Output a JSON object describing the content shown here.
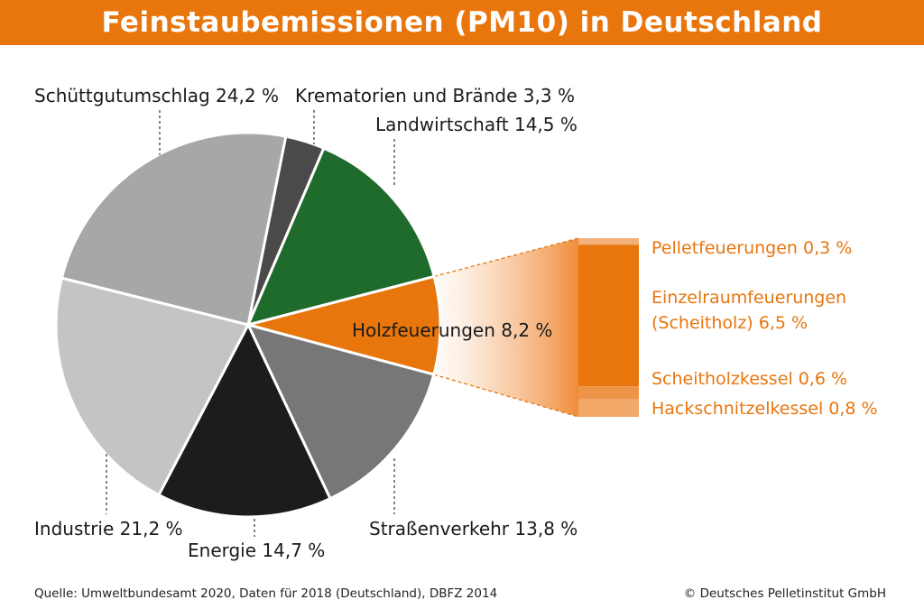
{
  "header": {
    "title": "Feinstaubemissionen (PM10) in Deutschland"
  },
  "colors": {
    "brand_orange": "#e8760d",
    "header_bg": "#e8760d"
  },
  "chart_data": [
    {
      "type": "pie",
      "title": "Feinstaubemissionen (PM10) in Deutschland",
      "slices": [
        {
          "label": "Krematorien und Brände",
          "value": 3.3,
          "display": "Krematorien und Brände 3,3 %",
          "color": "#4a4a4a"
        },
        {
          "label": "Landwirtschaft",
          "value": 14.5,
          "display": "Landwirtschaft 14,5 %",
          "color": "#1f6b2c"
        },
        {
          "label": "Holzfeuerungen",
          "value": 8.2,
          "display": "Holzfeuerungen 8,2 %",
          "color": "#e8760d"
        },
        {
          "label": "Straßenverkehr",
          "value": 13.8,
          "display": "Straßenverkehr 13,8 %",
          "color": "#777777"
        },
        {
          "label": "Energie",
          "value": 14.7,
          "display": "Energie 14,7 %",
          "color": "#1c1c1c"
        },
        {
          "label": "Industrie",
          "value": 21.2,
          "display": "Industrie 21,2 %",
          "color": "#c4c4c4"
        },
        {
          "label": "Schüttgutumschlag",
          "value": 24.2,
          "display": "Schüttgutumschlag 24,2 %",
          "color": "#a7a7a7"
        }
      ]
    },
    {
      "type": "bar",
      "subtitle": "Holzfeuerungen 8,2 %",
      "stacked": true,
      "segments": [
        {
          "label": "Pelletfeuerungen",
          "value": 0.3,
          "display": "Pelletfeuerungen 0,3 %",
          "color": "#f2b07a"
        },
        {
          "label": "Einzelraumfeuerungen (Scheitholz)",
          "value": 6.5,
          "display_lines": [
            "Einzelraumfeuerungen",
            "(Scheitholz) 6,5 %"
          ],
          "color": "#e8760d"
        },
        {
          "label": "Scheitholzkessel",
          "value": 0.6,
          "display": "Scheitholzkessel 0,6 %",
          "color": "#ee9448"
        },
        {
          "label": "Hackschnitzelkessel",
          "value": 0.8,
          "display": "Hackschnitzelkessel 0,8 %",
          "color": "#f2a868"
        }
      ]
    }
  ],
  "footer": {
    "source": "Quelle: Umweltbundesamt 2020, Daten für 2018 (Deutschland), DBFZ 2014",
    "copyright": "© Deutsches Pelletinstitut GmbH"
  }
}
